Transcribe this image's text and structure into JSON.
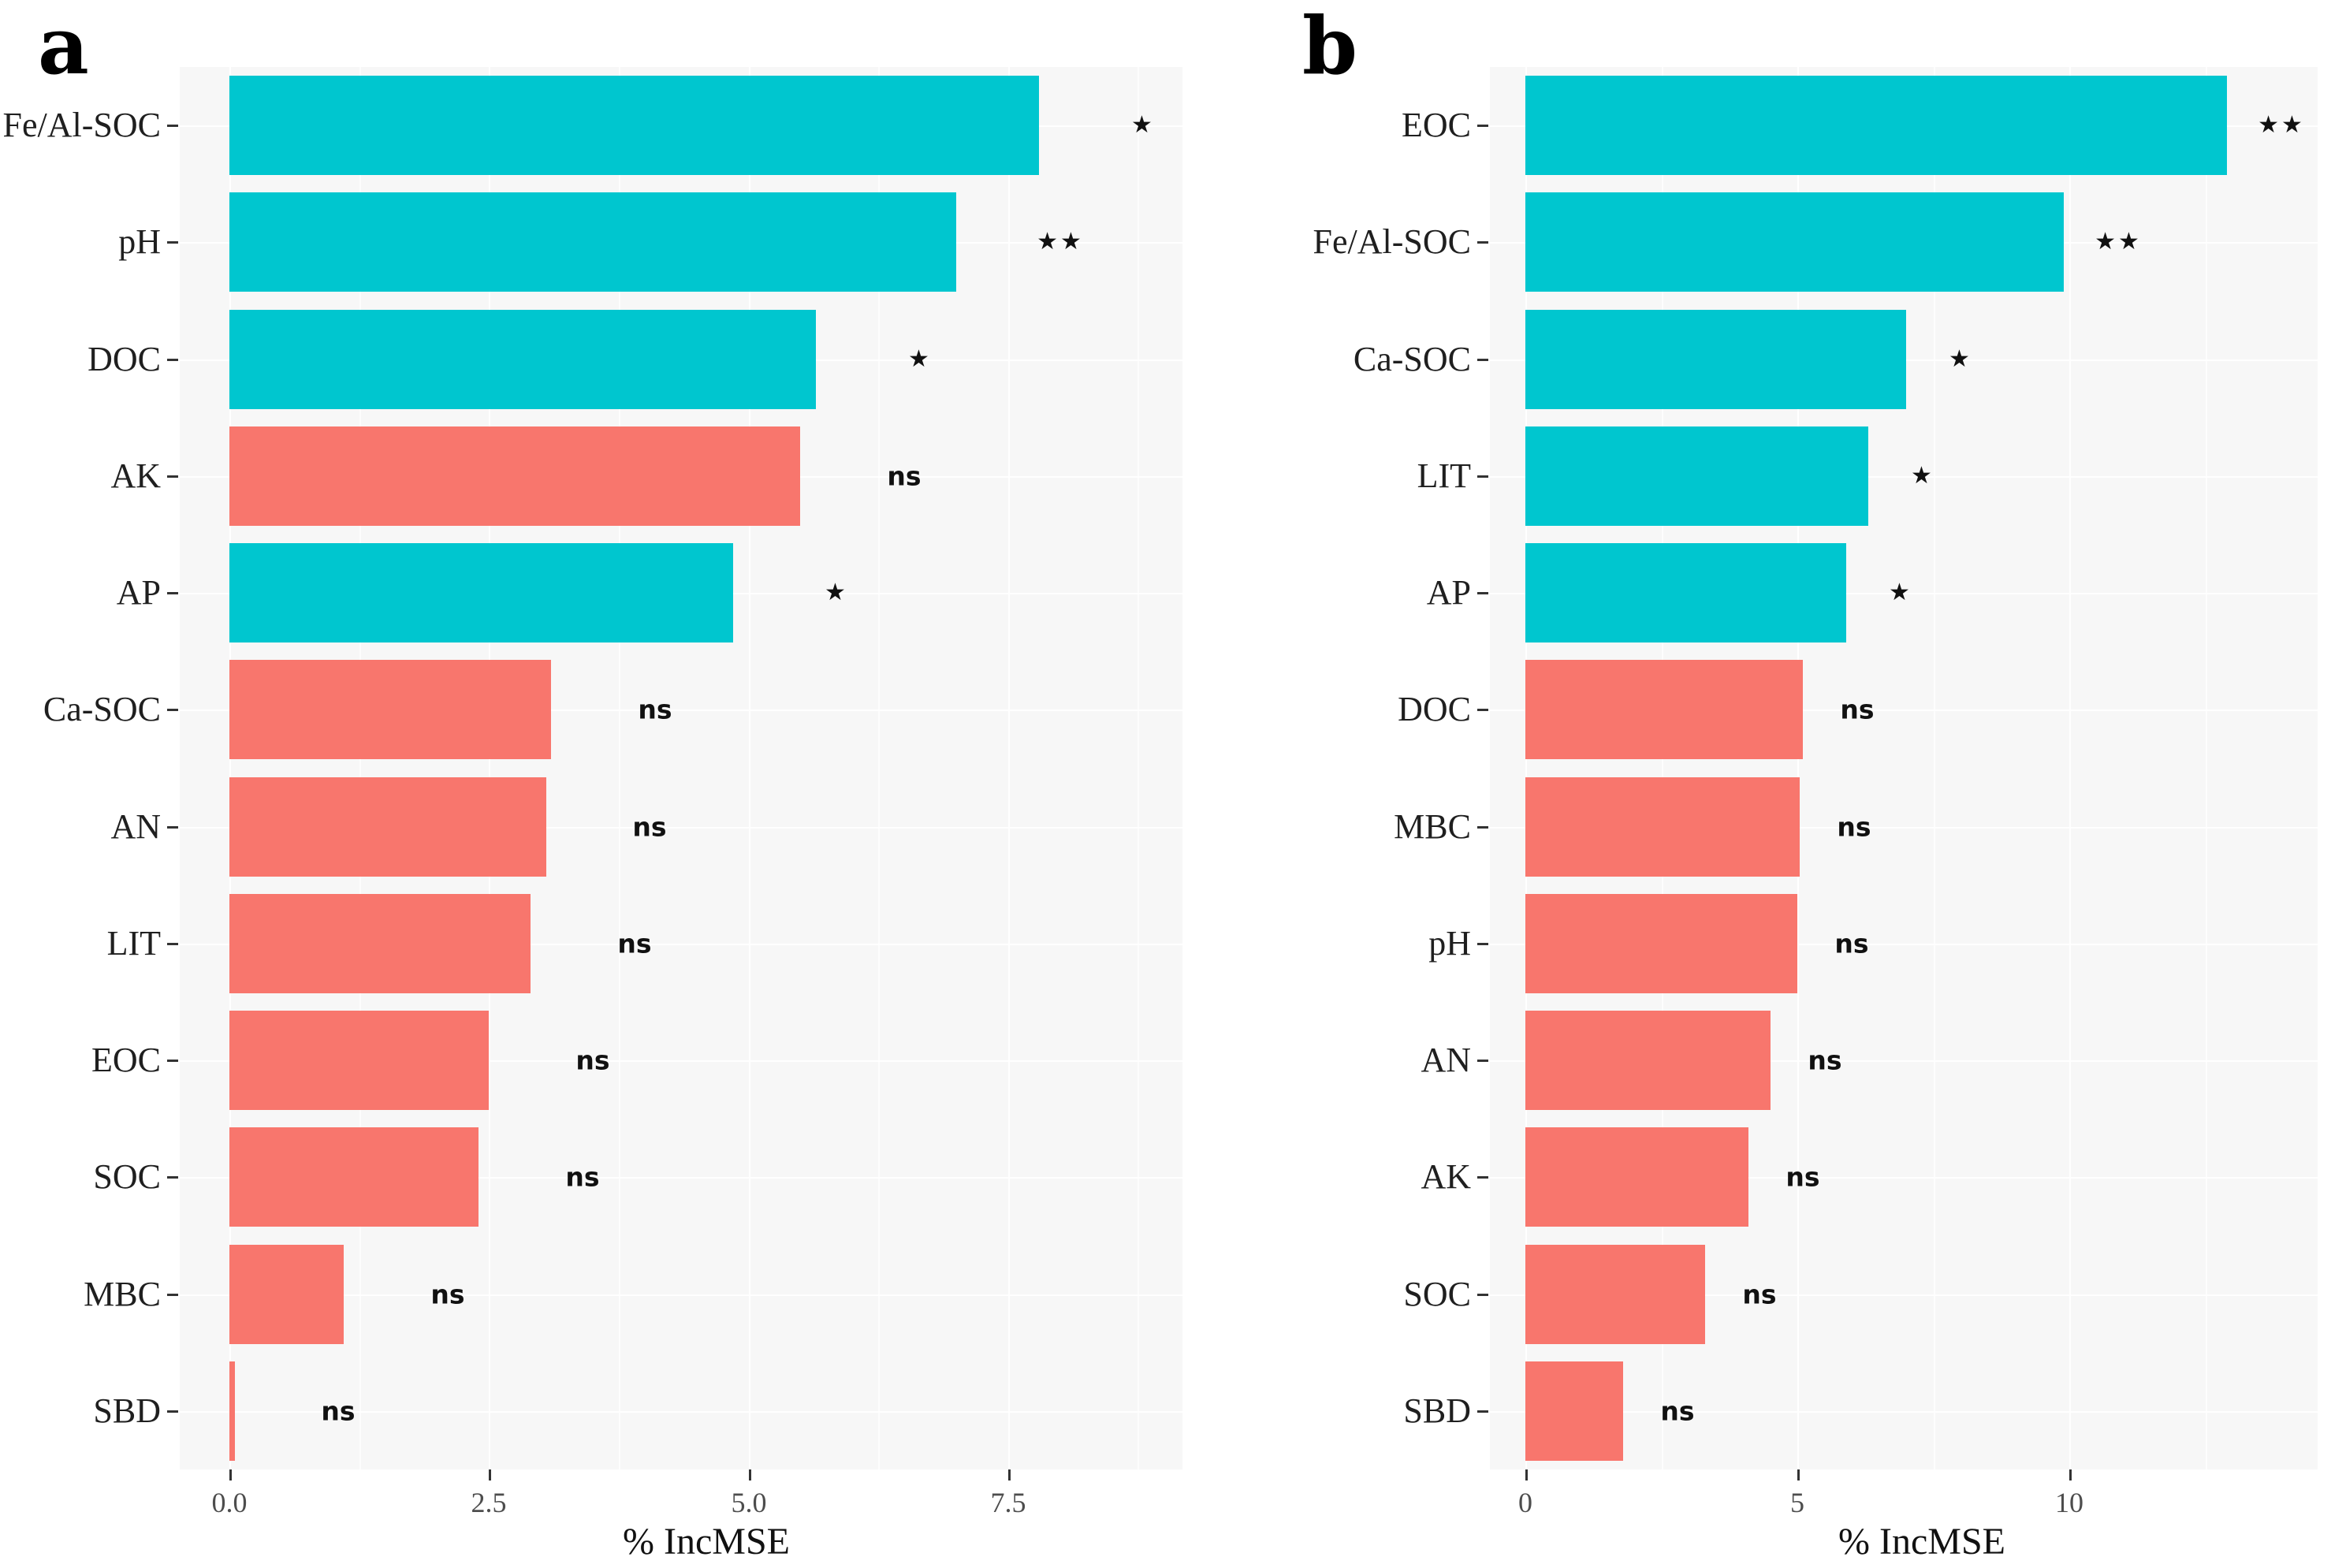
{
  "figure_type": "grouped-horizontal-bar-figure",
  "colors": {
    "significant_bar": "#00C6CF",
    "not_significant_bar": "#F8766D",
    "panel_background": "#F7F7F7",
    "gridline": "#FFFFFF",
    "axis_text": "#4D4D4D",
    "label_text": "#1F1F1F",
    "annotation_text": "#111111"
  },
  "chart_data": [
    {
      "type": "bar",
      "orientation": "horizontal",
      "panel_label": "a",
      "title": "",
      "xlabel": "% IncMSE",
      "ylabel": "",
      "xlim": [
        0,
        9.2
      ],
      "x_tick_values": [
        0,
        2.5,
        5,
        7.5
      ],
      "x_tick_labels": [
        "0.0",
        "2.5",
        "5.0",
        "7.5"
      ],
      "grid": "on",
      "legend": "none",
      "annotation_offset_units": 1.0,
      "categories": [
        "Fe/Al-SOC",
        "pH",
        "DOC",
        "AK",
        "AP",
        "Ca-SOC",
        "AN",
        "LIT",
        "EOC",
        "SOC",
        "MBC",
        "SBD"
      ],
      "values": [
        7.8,
        7.0,
        5.65,
        5.5,
        4.85,
        3.1,
        3.05,
        2.9,
        2.5,
        2.4,
        1.1,
        0.05
      ],
      "significance": [
        "*",
        "**",
        "*",
        "ns",
        "*",
        "ns",
        "ns",
        "ns",
        "ns",
        "ns",
        "ns",
        "ns"
      ],
      "bar_groups": [
        "significant",
        "significant",
        "significant",
        "not_significant",
        "significant",
        "not_significant",
        "not_significant",
        "not_significant",
        "not_significant",
        "not_significant",
        "not_significant",
        "not_significant"
      ]
    },
    {
      "type": "bar",
      "orientation": "horizontal",
      "panel_label": "b",
      "title": "",
      "xlabel": "% IncMSE",
      "ylabel": "",
      "xlim": [
        0,
        14.6
      ],
      "x_tick_values": [
        0,
        5,
        10
      ],
      "x_tick_labels": [
        "0",
        "5",
        "10"
      ],
      "grid": "on",
      "legend": "none",
      "annotation_offset_units": 1.0,
      "categories": [
        "EOC",
        "Fe/Al-SOC",
        "Ca-SOC",
        "LIT",
        "AP",
        "DOC",
        "MBC",
        "pH",
        "AN",
        "AK",
        "SOC",
        "SBD"
      ],
      "values": [
        12.9,
        9.9,
        7.0,
        6.3,
        5.9,
        5.1,
        5.05,
        5.0,
        4.5,
        4.1,
        3.3,
        1.8
      ],
      "significance": [
        "**",
        "**",
        "*",
        "*",
        "*",
        "ns",
        "ns",
        "ns",
        "ns",
        "ns",
        "ns",
        "ns"
      ],
      "bar_groups": [
        "significant",
        "significant",
        "significant",
        "significant",
        "significant",
        "not_significant",
        "not_significant",
        "not_significant",
        "not_significant",
        "not_significant",
        "not_significant",
        "not_significant"
      ]
    }
  ]
}
